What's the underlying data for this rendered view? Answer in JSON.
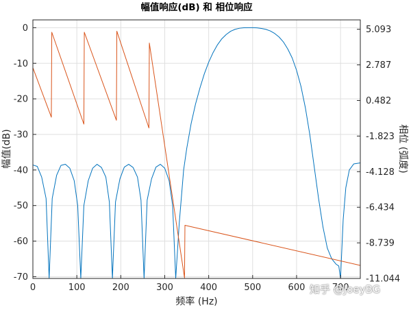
{
  "chart_data": {
    "type": "line",
    "title": "幅值响应(dB) 和 相位响应",
    "xlabel": "频率 (Hz)",
    "ylabel_left": "幅值(dB)",
    "ylabel_right": "相位 (弧度)",
    "xlim": [
      0,
      745
    ],
    "ylim_left": [
      -70.5,
      2.2
    ],
    "ylim_right": [
      -11.044,
      5.7
    ],
    "x_ticks": [
      "0",
      "100",
      "200",
      "300",
      "400",
      "500",
      "600",
      "700"
    ],
    "y_ticks_left": [
      "0",
      "-10",
      "-20",
      "-30",
      "-40",
      "-50",
      "-60",
      "-70"
    ],
    "y_ticks_right": [
      "5.093",
      "2.787",
      "0.482",
      "-1.823",
      "-4.128",
      "-6.434",
      "-8.739",
      "-11.044"
    ],
    "grid": true,
    "series": [
      {
        "color": "#0072bd",
        "axis": "left",
        "x": [
          0,
          10,
          20,
          30,
          37,
          44,
          54,
          64,
          74,
          84,
          94,
          102,
          109,
          116,
          126,
          136,
          146,
          156,
          166,
          174,
          181,
          188,
          198,
          208,
          218,
          228,
          238,
          246,
          253,
          260,
          270,
          280,
          290,
          300,
          310,
          318,
          325,
          333,
          343,
          350,
          360,
          370,
          380,
          390,
          400,
          410,
          420,
          430,
          440,
          450,
          460,
          470,
          480,
          490,
          500,
          510,
          520,
          530,
          540,
          550,
          560,
          570,
          580,
          590,
          600,
          610,
          620,
          630,
          640,
          650,
          660,
          670,
          680,
          690,
          696,
          700,
          706,
          712,
          720,
          730,
          745
        ],
        "y": [
          -38.6,
          -39.0,
          -42.0,
          -48.0,
          -70.5,
          -48.0,
          -41.5,
          -38.7,
          -38.4,
          -39.5,
          -43.0,
          -50.0,
          -70.5,
          -50.0,
          -43.0,
          -39.5,
          -38.4,
          -39.3,
          -42.0,
          -49.0,
          -70.5,
          -49.0,
          -42.5,
          -39.2,
          -38.4,
          -39.3,
          -42.0,
          -48.5,
          -70.5,
          -48.5,
          -42.5,
          -39.2,
          -38.4,
          -39.5,
          -43.0,
          -50.0,
          -70.5,
          -55.0,
          -40.0,
          -34.0,
          -27.0,
          -21.5,
          -17.0,
          -13.0,
          -9.7,
          -7.0,
          -4.8,
          -3.1,
          -1.9,
          -1.0,
          -0.45,
          -0.15,
          -0.02,
          0.0,
          0.0,
          -0.05,
          -0.2,
          -0.45,
          -0.9,
          -1.6,
          -2.6,
          -4.0,
          -6.0,
          -8.5,
          -12.0,
          -16.5,
          -22.5,
          -30.0,
          -39.0,
          -48.0,
          -56.0,
          -62.0,
          -65.0,
          -66.5,
          -67.0,
          -70.5,
          -54.0,
          -45.0,
          -40.0,
          -38.3,
          -38.0
        ]
      },
      {
        "color": "#d95319",
        "axis": "right",
        "x": [
          0,
          42,
          43,
          116,
          117,
          190,
          191,
          264,
          265,
          345,
          346,
          745
        ],
        "y": [
          2.6,
          -0.6,
          4.9,
          -1.05,
          4.9,
          -0.8,
          4.97,
          -1.3,
          4.2,
          -11.0,
          -7.6,
          -10.2
        ]
      }
    ],
    "watermark": "知乎 @JoeyBG"
  }
}
